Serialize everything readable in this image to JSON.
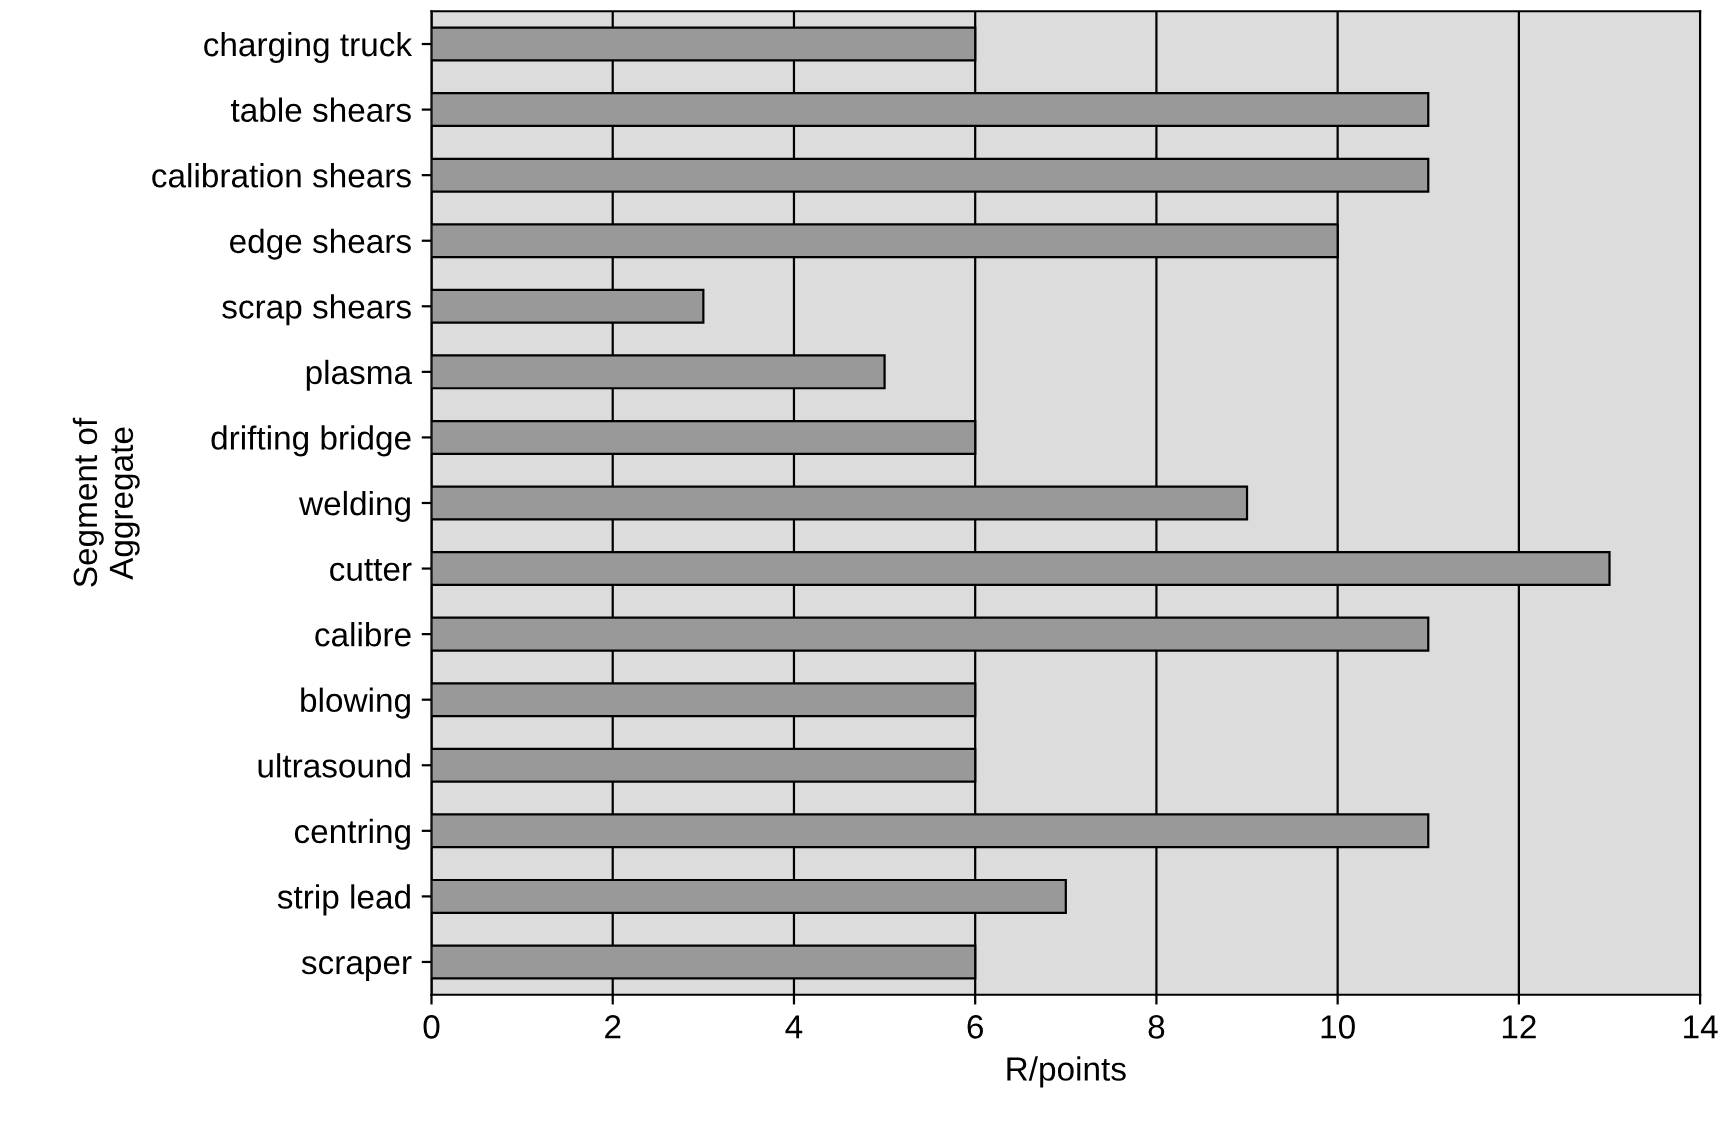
{
  "chart_data": {
    "type": "bar",
    "orientation": "horizontal",
    "categories": [
      "charging truck",
      "table shears",
      "calibration shears",
      "edge shears",
      "scrap shears",
      "plasma",
      "drifting bridge",
      "welding",
      "cutter",
      "calibre",
      "blowing",
      "ultrasound",
      "centring",
      "strip lead",
      "scraper"
    ],
    "values": [
      6,
      11,
      11,
      10,
      3,
      5,
      6,
      9,
      13,
      11,
      6,
      6,
      11,
      7,
      6
    ],
    "color": "#999999",
    "xlabel": "R/points",
    "ylabel": "Segment of\nAggregate",
    "xlim": [
      0,
      14
    ],
    "xticks": [
      0,
      2,
      4,
      6,
      8,
      10,
      12,
      14
    ],
    "grid": "x",
    "legend": false
  }
}
